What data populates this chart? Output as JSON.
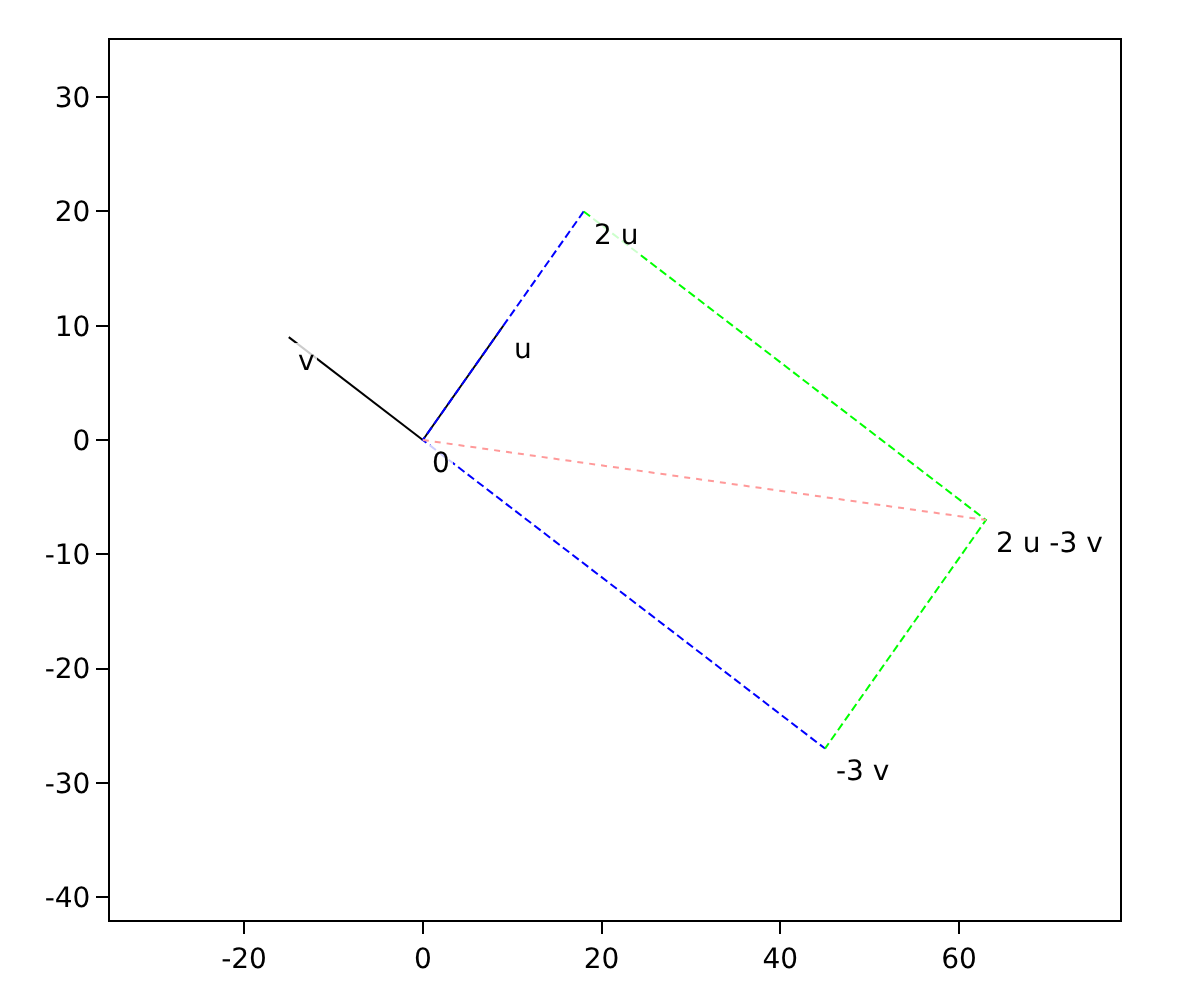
{
  "chart_data": {
    "type": "line",
    "series": [
      {
        "x": [
          0,
          9
        ],
        "values": [
          0,
          10
        ],
        "color": "#000000",
        "line_style": "solid"
      },
      {
        "x": [
          0,
          -15
        ],
        "values": [
          0,
          9
        ],
        "color": "#000000",
        "line_style": "solid"
      },
      {
        "x": [
          18,
          0,
          45
        ],
        "values": [
          20,
          0,
          -27
        ],
        "color": "#0000ff",
        "line_style": "dashed"
      },
      {
        "x": [
          18,
          63,
          45
        ],
        "values": [
          20,
          -7,
          -27
        ],
        "color": "#00ff00",
        "line_style": "dashed"
      },
      {
        "x": [
          0,
          63
        ],
        "values": [
          0,
          -7
        ],
        "color": "#ff9999",
        "line_style": "dotted"
      }
    ],
    "annotations": [
      {
        "text": "0",
        "x": 0,
        "y": 0
      },
      {
        "text": "u",
        "x": 9,
        "y": 10
      },
      {
        "text": "v",
        "x": -15,
        "y": 9
      },
      {
        "text": "2 u",
        "x": 18,
        "y": 20
      },
      {
        "text": "-3 v",
        "x": 45,
        "y": -27
      },
      {
        "text": "2 u -3 v",
        "x": 63,
        "y": -7
      }
    ],
    "xlim": [
      -35,
      78
    ],
    "ylim": [
      -42,
      35
    ],
    "xticks": [
      -20,
      0,
      20,
      40,
      60
    ],
    "yticks": [
      -40,
      -30,
      -20,
      -10,
      0,
      10,
      20,
      30
    ]
  }
}
